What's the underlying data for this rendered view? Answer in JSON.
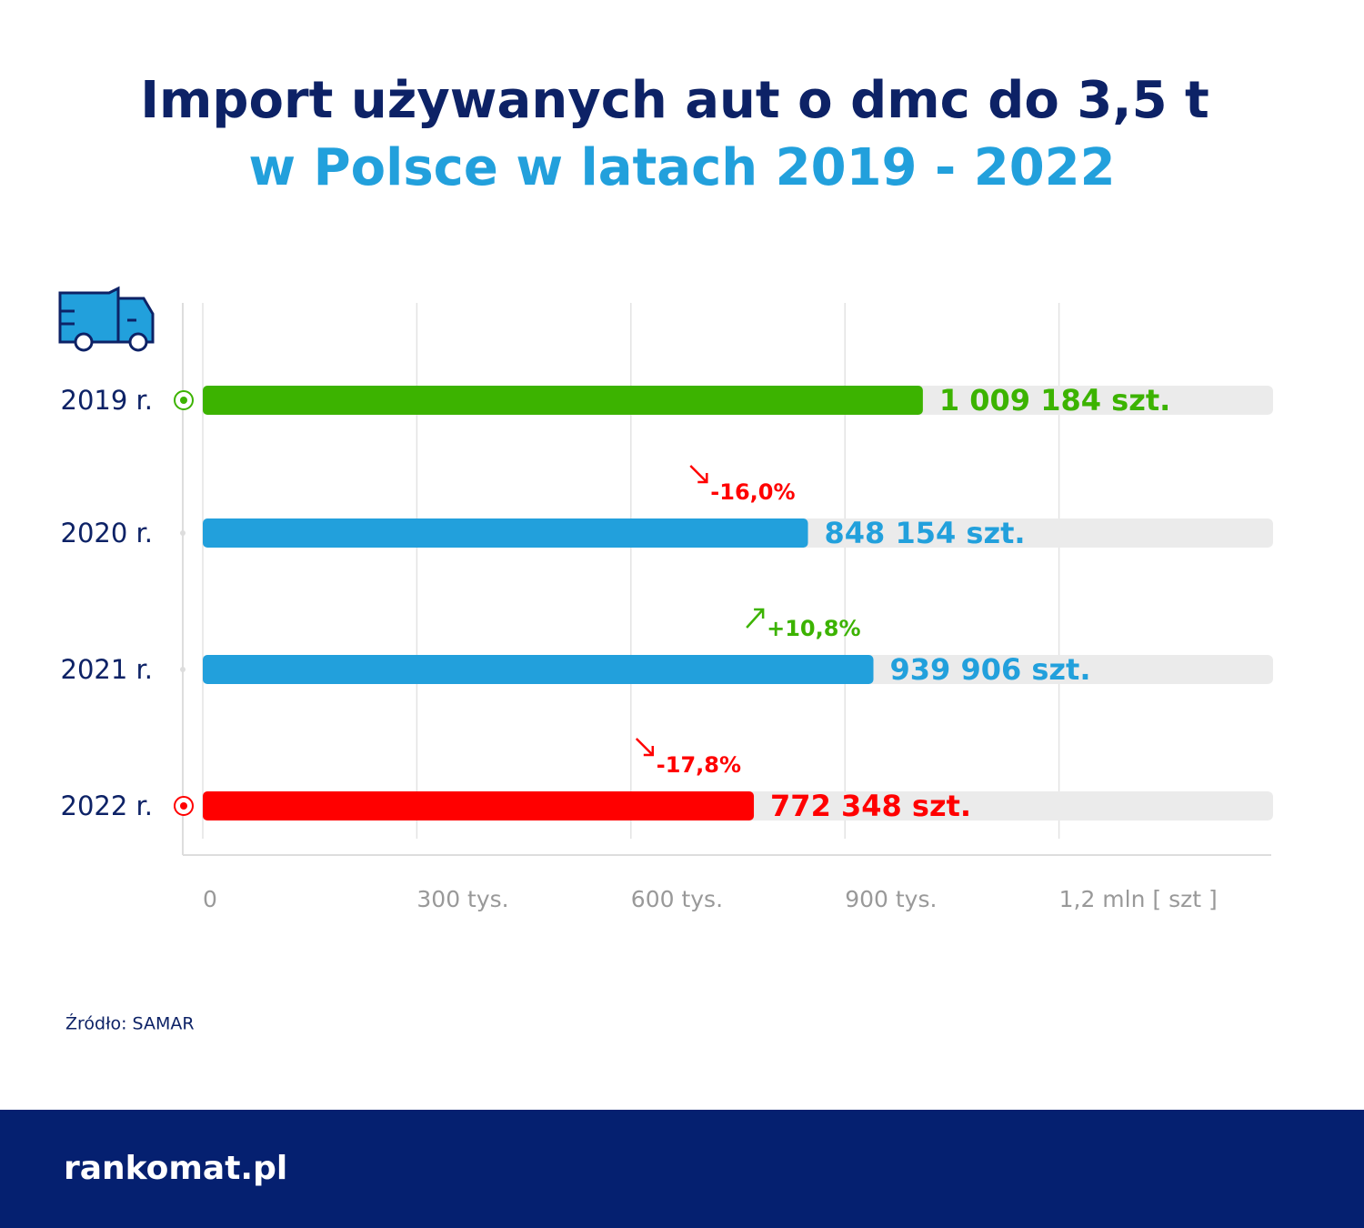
{
  "chart_data": {
    "type": "bar",
    "orientation": "horizontal",
    "title": "Import używanych aut o dmc do 3,5 t",
    "subtitle": "w Polsce w latach 2019 - 2022",
    "categories": [
      "2019 r.",
      "2020 r.",
      "2021 r.",
      "2022 r."
    ],
    "values": [
      1009184,
      848154,
      939906,
      772348
    ],
    "value_labels": [
      "1 009 184 szt.",
      "848 154 szt.",
      "939 906 szt.",
      "772 348 szt."
    ],
    "colors": [
      "#3cb300",
      "#22a0dc",
      "#22a0dc",
      "#ff0000"
    ],
    "changes": [
      null,
      -16.0,
      10.8,
      -17.8
    ],
    "change_labels": [
      null,
      "-16,0%",
      "+10,8%",
      "-17,8%"
    ],
    "up_color": "#3cb300",
    "down_color": "#ff0000",
    "xlim": [
      0,
      1500000
    ],
    "xticks": [
      0,
      {
        "value": 300000,
        "label": "300 tys."
      },
      {
        "value": 600000,
        "label": "600 tys."
      },
      {
        "value": 900000,
        "label": "900 tys."
      },
      {
        "value": 1200000,
        "label": "1,2 mln [ szt ]"
      }
    ],
    "grid": true,
    "source": "Źródło: SAMAR",
    "brand": "rankomat.pl"
  }
}
